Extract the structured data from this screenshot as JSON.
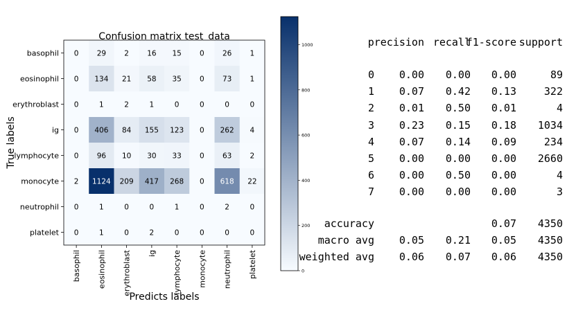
{
  "chart_data": [
    {
      "type": "heatmap",
      "title": "Confusion matrix test_data",
      "xlabel": "Predicts labels",
      "ylabel": "True labels",
      "row_labels": [
        "basophil",
        "eosinophil",
        "erythroblast",
        "ig",
        "lymphocyte",
        "monocyte",
        "neutrophil",
        "platelet"
      ],
      "col_labels": [
        "basophil",
        "eosinophil",
        "erythroblast",
        "ig",
        "lymphocyte",
        "monocyte",
        "neutrophil",
        "platelet"
      ],
      "matrix": [
        [
          0,
          29,
          2,
          16,
          15,
          0,
          26,
          1
        ],
        [
          0,
          134,
          21,
          58,
          35,
          0,
          73,
          1
        ],
        [
          0,
          1,
          2,
          1,
          0,
          0,
          0,
          0
        ],
        [
          0,
          406,
          84,
          155,
          123,
          0,
          262,
          4
        ],
        [
          0,
          96,
          10,
          30,
          33,
          0,
          63,
          2
        ],
        [
          2,
          1124,
          209,
          417,
          268,
          0,
          618,
          22
        ],
        [
          0,
          1,
          0,
          0,
          1,
          0,
          2,
          0
        ],
        [
          0,
          1,
          0,
          2,
          0,
          0,
          0,
          0
        ]
      ],
      "colorbar": {
        "min": 0,
        "max": 1124,
        "ticks": [
          0,
          200,
          400,
          600,
          800,
          1000
        ],
        "colors": [
          "#f7fbff",
          "#08306b"
        ]
      }
    },
    {
      "type": "table",
      "columns": [
        "precision",
        "recall",
        "f1-score",
        "support"
      ],
      "rows": [
        {
          "label": "0",
          "values": [
            "0.00",
            "0.00",
            "0.00",
            "89"
          ]
        },
        {
          "label": "1",
          "values": [
            "0.07",
            "0.42",
            "0.13",
            "322"
          ]
        },
        {
          "label": "2",
          "values": [
            "0.01",
            "0.50",
            "0.01",
            "4"
          ]
        },
        {
          "label": "3",
          "values": [
            "0.23",
            "0.15",
            "0.18",
            "1034"
          ]
        },
        {
          "label": "4",
          "values": [
            "0.07",
            "0.14",
            "0.09",
            "234"
          ]
        },
        {
          "label": "5",
          "values": [
            "0.00",
            "0.00",
            "0.00",
            "2660"
          ]
        },
        {
          "label": "6",
          "values": [
            "0.00",
            "0.50",
            "0.00",
            "4"
          ]
        },
        {
          "label": "7",
          "values": [
            "0.00",
            "0.00",
            "0.00",
            "3"
          ]
        }
      ],
      "summary_rows": [
        {
          "label": "accuracy",
          "values": [
            "",
            "",
            "0.07",
            "4350"
          ]
        },
        {
          "label": "macro avg",
          "values": [
            "0.05",
            "0.21",
            "0.05",
            "4350"
          ]
        },
        {
          "label": "weighted avg",
          "values": [
            "0.06",
            "0.07",
            "0.06",
            "4350"
          ]
        }
      ]
    }
  ]
}
